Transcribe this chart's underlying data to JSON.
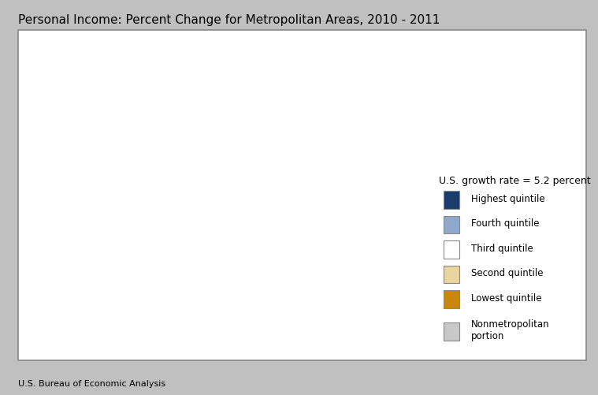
{
  "title": "Personal Income: Percent Change for Metropolitan Areas, 2010 - 2011",
  "source": "U.S. Bureau of Economic Analysis",
  "legend_title": "U.S. growth rate = 5.2 percent",
  "legend_items": [
    {
      "label": "Highest quintile",
      "color": "#1a3d6e"
    },
    {
      "label": "Fourth quintile",
      "color": "#8fa8cc"
    },
    {
      "label": "Third quintile",
      "color": "#ffffff"
    },
    {
      "label": "Second quintile",
      "color": "#e8d5a0"
    },
    {
      "label": "Lowest quintile",
      "color": "#c8870a"
    },
    {
      "label": "Nonmetropolitan\nportion",
      "color": "#c8c8c8"
    }
  ],
  "colors": {
    "highest": "#1a3d6e",
    "fourth": "#8fa8cc",
    "third": "#ffffff",
    "second": "#e8d5a0",
    "lowest": "#c8870a",
    "nonmetro": "#c8c8c8",
    "background": "#c8c8c8",
    "border": "#888888",
    "outer_bg": "#c0c0c0",
    "frame_bg": "#ffffff"
  },
  "figsize": [
    7.59,
    5.02
  ],
  "dpi": 100,
  "title_fontsize": 11,
  "legend_title_fontsize": 9,
  "legend_label_fontsize": 8.5,
  "source_fontsize": 8
}
